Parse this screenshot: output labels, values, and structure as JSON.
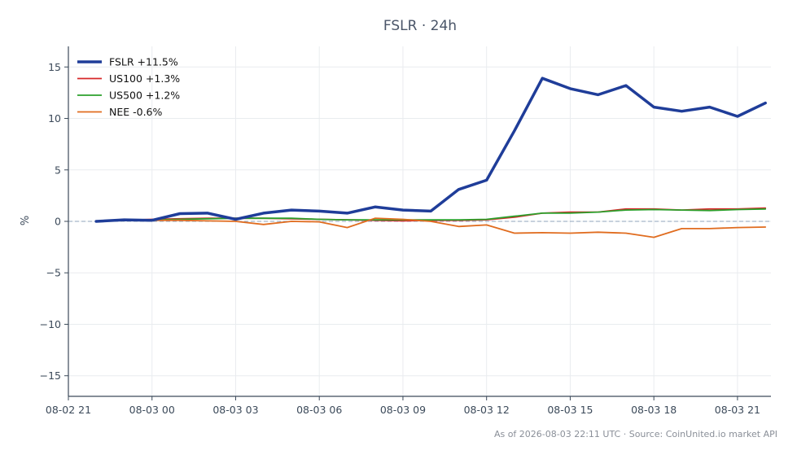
{
  "chart_data": {
    "type": "line",
    "title": "FSLR · 24h",
    "ylabel": "%",
    "xlabel": "",
    "ylim": [
      -17,
      17
    ],
    "yticks": [
      -15,
      -10,
      -5,
      0,
      5,
      10,
      15
    ],
    "ytick_labels": [
      "−15",
      "−10",
      "−5",
      "0",
      "5",
      "10",
      "15"
    ],
    "xlim": [
      0,
      25.2
    ],
    "xticks": [
      0,
      3,
      6,
      9,
      12,
      15,
      18,
      21,
      24
    ],
    "xtick_labels": [
      "08-02 21",
      "08-03 00",
      "08-03 03",
      "08-03 06",
      "08-03 09",
      "08-03 12",
      "08-03 15",
      "08-03 18",
      "08-03 21"
    ],
    "grid": true,
    "zero_line": true,
    "legend_position": "top-left",
    "series": [
      {
        "name": "FSLR +11.5%",
        "color": "#1f3d99",
        "width": 3.5,
        "x": [
          1,
          2,
          3,
          4,
          5,
          6,
          7,
          8,
          9,
          10,
          11,
          12,
          13,
          14,
          15,
          16,
          17,
          18,
          19,
          20,
          21,
          22,
          23,
          24,
          25
        ],
        "values": [
          0.0,
          0.15,
          0.1,
          0.75,
          0.8,
          0.2,
          0.8,
          1.1,
          1.0,
          0.8,
          1.4,
          1.1,
          1.0,
          3.1,
          4.0,
          8.8,
          13.9,
          12.9,
          12.3,
          13.2,
          11.1,
          10.7,
          11.1,
          10.2,
          11.5
        ]
      },
      {
        "name": "US100 +1.3%",
        "color": "#d62728",
        "width": 1.8,
        "x": [
          1,
          2,
          3,
          4,
          5,
          6,
          7,
          8,
          9,
          10,
          11,
          12,
          13,
          14,
          15,
          16,
          17,
          18,
          19,
          20,
          21,
          22,
          23,
          24,
          25
        ],
        "values": [
          0.0,
          0.1,
          0.2,
          0.25,
          0.3,
          0.3,
          0.3,
          0.25,
          0.2,
          0.15,
          0.1,
          0.05,
          0.1,
          0.1,
          0.15,
          0.4,
          0.8,
          0.9,
          0.9,
          1.2,
          1.2,
          1.1,
          1.2,
          1.2,
          1.3
        ]
      },
      {
        "name": "US500 +1.2%",
        "color": "#2ca02c",
        "width": 1.8,
        "x": [
          1,
          2,
          3,
          4,
          5,
          6,
          7,
          8,
          9,
          10,
          11,
          12,
          13,
          14,
          15,
          16,
          17,
          18,
          19,
          20,
          21,
          22,
          23,
          24,
          25
        ],
        "values": [
          0.0,
          0.1,
          0.15,
          0.2,
          0.25,
          0.3,
          0.3,
          0.3,
          0.2,
          0.15,
          0.15,
          0.15,
          0.15,
          0.15,
          0.2,
          0.5,
          0.8,
          0.8,
          0.9,
          1.1,
          1.15,
          1.1,
          1.05,
          1.15,
          1.2
        ]
      },
      {
        "name": "NEE -0.6%",
        "color": "#e06c1f",
        "width": 1.8,
        "x": [
          1,
          2,
          3,
          4,
          5,
          6,
          7,
          8,
          9,
          10,
          11,
          12,
          13,
          14,
          15,
          16,
          17,
          18,
          19,
          20,
          21,
          22,
          23,
          24,
          25
        ],
        "values": [
          0.0,
          0.1,
          0.1,
          0.1,
          0.05,
          0.0,
          -0.3,
          0.0,
          -0.05,
          -0.6,
          0.3,
          0.2,
          0.0,
          -0.5,
          -0.35,
          -1.15,
          -1.1,
          -1.15,
          -1.05,
          -1.15,
          -1.55,
          -0.7,
          -0.7,
          -0.6,
          -0.55
        ]
      }
    ]
  },
  "footer": "As of 2026-08-03 22:11 UTC · Source: CoinUnited.io market API"
}
